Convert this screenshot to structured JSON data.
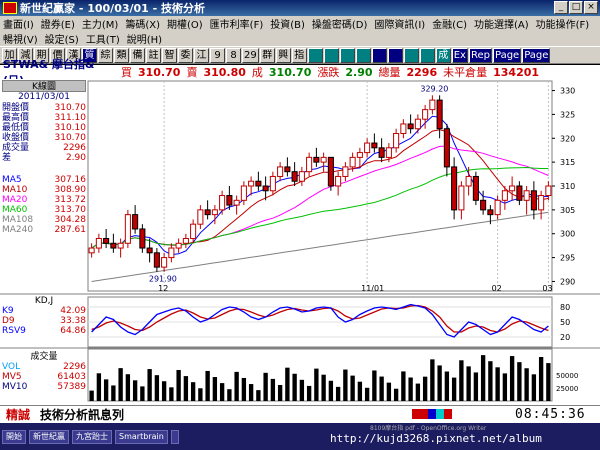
{
  "window": {
    "title": "新世紀贏家 - 100/03/01 - 技術分析",
    "buttons": [
      "_",
      "□",
      "×"
    ]
  },
  "menu": {
    "row1": [
      "畫面(I)",
      "證券(E)",
      "主力(M)",
      "籌碼(X)",
      "期權(O)",
      "匯市利率(F)",
      "投資(B)",
      "操盤密碼(D)",
      "國際資訊(I)",
      "金融(C)",
      "功能選擇(A)",
      "功能操作(F)"
    ],
    "row2": [
      "暢視(V)",
      "設定(S)",
      "工具(T)",
      "說明(H)"
    ]
  },
  "toolbar": {
    "buttons": [
      "加",
      "減",
      "期",
      "價",
      "漢",
      "質",
      "綜",
      "類",
      "備",
      "註",
      "智",
      "委",
      "江",
      "9",
      "8",
      "29",
      "群",
      "興",
      "指",
      "",
      "",
      "",
      "",
      "",
      "",
      "",
      "",
      "成",
      "Ex",
      "Rep",
      "Page",
      "Page"
    ]
  },
  "infobar": {
    "symbol": "STWA& 摩台指&(日)",
    "buy_label": "買",
    "buy_value": "310.70",
    "sell_label": "賣",
    "sell_value": "310.80",
    "deal_label": "成",
    "deal_value": "310.70",
    "change_label": "漲跌",
    "change_value": "2.90",
    "volume_label": "總量",
    "volume_value": "2296",
    "oi_label": "未平倉量",
    "oi_value": "134201"
  },
  "leftpanel": {
    "header": "K線圖",
    "date": "2011/03/01",
    "rows": [
      {
        "k": "開盤價",
        "v": "310.70"
      },
      {
        "k": "最高價",
        "v": "311.10"
      },
      {
        "k": "最低價",
        "v": "310.10"
      },
      {
        "k": "收盤價",
        "v": "310.70"
      },
      {
        "k": "成交量",
        "v": "2296"
      },
      {
        "k": "差",
        "v": "2.90"
      }
    ],
    "ma": [
      {
        "k": "MA5",
        "v": "307.16",
        "color": "#0000ff"
      },
      {
        "k": "MA10",
        "v": "308.90",
        "color": "#c00000"
      },
      {
        "k": "MA20",
        "v": "313.72",
        "color": "#ff00ff"
      },
      {
        "k": "MA60",
        "v": "313.70",
        "color": "#00c000"
      },
      {
        "k": "MA108",
        "v": "304.28",
        "color": "#808080"
      },
      {
        "k": "MA240",
        "v": "287.61",
        "color": "#808080"
      }
    ]
  },
  "kd": {
    "title": "KD,J",
    "rows": [
      {
        "k": "K9",
        "v": "42.09",
        "color": "#0000ff"
      },
      {
        "k": "D9",
        "v": "33.38",
        "color": "#c00000"
      },
      {
        "k": "RSV9",
        "v": "64.86",
        "color": "#0000ff"
      }
    ],
    "ticks": [
      "80",
      "50",
      "20"
    ]
  },
  "vol": {
    "title": "成交量",
    "rows": [
      {
        "k": "VOL",
        "v": "2296",
        "color": "#00a0ff"
      },
      {
        "k": "MV5",
        "v": "61403",
        "color": "#c00000"
      },
      {
        "k": "MV10",
        "v": "57389",
        "color": "#000080"
      }
    ],
    "ticks": [
      "50000",
      "25000"
    ]
  },
  "price_axis": [
    "330",
    "325",
    "320",
    "315",
    "310",
    "305",
    "300",
    "295",
    "290"
  ],
  "time_axis": [
    "12",
    "11/01",
    "02",
    "03"
  ],
  "annotations": {
    "high": "329.20",
    "low": "291.90"
  },
  "statusbar": {
    "left": "精誠",
    "message": "技術分析訊息列",
    "time": "08:45:36"
  },
  "taskbar": {
    "items": [
      "開始",
      "新世紀贏",
      "九宮跆士",
      "Smartbrain",
      ""
    ],
    "tip": "8109摩台指 pdf - OpenOffice.org Writer",
    "url": "http://kujd3268.pixnet.net/album"
  },
  "chart_data": {
    "type": "candlestick",
    "title": "STWA& 摩台指&(日)",
    "ylim": [
      288,
      332
    ],
    "candles": [
      [
        296,
        298,
        295,
        297
      ],
      [
        297,
        300,
        296,
        299
      ],
      [
        299,
        301,
        297,
        298
      ],
      [
        298,
        300,
        296,
        297
      ],
      [
        297,
        299,
        295,
        298
      ],
      [
        298,
        305,
        297,
        304
      ],
      [
        304,
        306,
        300,
        301
      ],
      [
        301,
        302,
        296,
        297
      ],
      [
        297,
        299,
        294,
        296
      ],
      [
        296,
        297,
        292,
        293
      ],
      [
        293,
        296,
        292,
        295
      ],
      [
        295,
        298,
        294,
        297
      ],
      [
        297,
        299,
        296,
        298
      ],
      [
        298,
        300,
        297,
        299
      ],
      [
        299,
        303,
        298,
        302
      ],
      [
        302,
        306,
        301,
        305
      ],
      [
        305,
        307,
        303,
        304
      ],
      [
        304,
        306,
        302,
        305
      ],
      [
        305,
        309,
        304,
        308
      ],
      [
        308,
        310,
        305,
        306
      ],
      [
        306,
        308,
        304,
        307
      ],
      [
        307,
        311,
        306,
        310
      ],
      [
        310,
        312,
        308,
        311
      ],
      [
        311,
        313,
        309,
        310
      ],
      [
        310,
        312,
        307,
        309
      ],
      [
        309,
        313,
        308,
        312
      ],
      [
        312,
        315,
        311,
        314
      ],
      [
        314,
        316,
        312,
        313
      ],
      [
        313,
        315,
        310,
        311
      ],
      [
        311,
        314,
        310,
        313
      ],
      [
        313,
        317,
        312,
        316
      ],
      [
        316,
        318,
        314,
        315
      ],
      [
        315,
        317,
        313,
        316
      ],
      [
        316,
        316,
        309,
        310
      ],
      [
        310,
        313,
        308,
        312
      ],
      [
        312,
        315,
        311,
        314
      ],
      [
        314,
        317,
        313,
        316
      ],
      [
        316,
        318,
        314,
        317
      ],
      [
        317,
        320,
        316,
        319
      ],
      [
        319,
        321,
        317,
        318
      ],
      [
        318,
        320,
        315,
        316
      ],
      [
        316,
        319,
        315,
        318
      ],
      [
        318,
        322,
        317,
        321
      ],
      [
        321,
        324,
        320,
        323
      ],
      [
        323,
        325,
        321,
        322
      ],
      [
        322,
        325,
        321,
        324
      ],
      [
        324,
        327,
        322,
        326
      ],
      [
        326,
        329,
        325,
        328
      ],
      [
        328,
        329,
        320,
        322
      ],
      [
        322,
        323,
        312,
        314
      ],
      [
        314,
        316,
        303,
        305
      ],
      [
        305,
        311,
        303,
        310
      ],
      [
        310,
        314,
        308,
        312
      ],
      [
        312,
        313,
        306,
        307
      ],
      [
        307,
        309,
        304,
        305
      ],
      [
        305,
        306,
        302,
        304
      ],
      [
        304,
        308,
        303,
        307
      ],
      [
        307,
        310,
        305,
        309
      ],
      [
        309,
        312,
        307,
        310
      ],
      [
        310,
        311,
        306,
        307
      ],
      [
        307,
        310,
        304,
        309
      ],
      [
        309,
        311,
        303,
        305
      ],
      [
        305,
        309,
        303,
        308
      ],
      [
        308,
        311,
        307,
        310
      ]
    ],
    "kd_k": [
      30,
      45,
      60,
      55,
      40,
      30,
      25,
      35,
      50,
      65,
      70,
      75,
      78,
      72,
      60,
      50,
      55,
      65,
      75,
      80,
      78,
      70,
      60,
      55,
      60,
      70,
      78,
      80,
      76,
      70,
      72,
      78,
      80,
      78,
      60,
      50,
      55,
      65,
      72,
      78,
      80,
      78,
      75,
      80,
      85,
      82,
      78,
      65,
      45,
      25,
      20,
      35,
      50,
      45,
      35,
      25,
      30,
      45,
      60,
      55,
      45,
      35,
      30,
      42
    ],
    "kd_d": [
      35,
      40,
      48,
      52,
      48,
      42,
      35,
      33,
      40,
      50,
      58,
      66,
      72,
      74,
      68,
      60,
      56,
      58,
      65,
      72,
      76,
      75,
      70,
      64,
      60,
      64,
      70,
      75,
      77,
      74,
      72,
      74,
      77,
      78,
      72,
      62,
      56,
      58,
      64,
      70,
      76,
      78,
      77,
      78,
      82,
      83,
      80,
      72,
      60,
      42,
      30,
      30,
      38,
      42,
      40,
      33,
      30,
      36,
      46,
      52,
      50,
      44,
      38,
      33
    ]
  }
}
